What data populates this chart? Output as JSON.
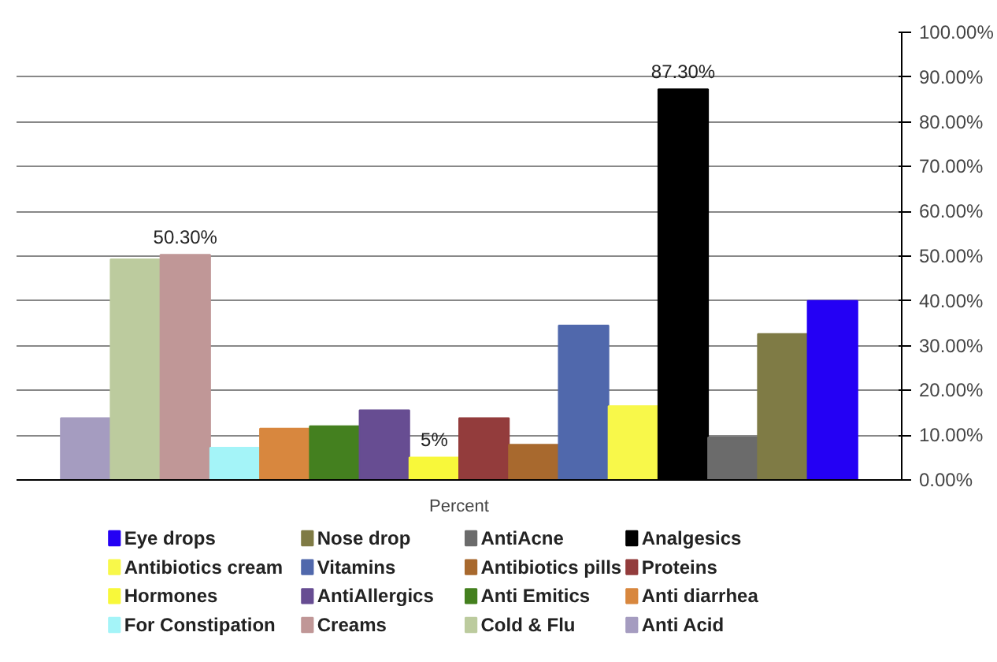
{
  "chart_data": {
    "type": "bar",
    "categories": [
      "Percent"
    ],
    "series": [
      {
        "name": "Anti Acid",
        "color": "#a59cc0",
        "values": [
          13.8
        ]
      },
      {
        "name": "Cold & Flu",
        "color": "#bccb9e",
        "values": [
          49.3
        ]
      },
      {
        "name": "Creams",
        "color": "#c09797",
        "values": [
          50.3
        ],
        "value_labels": [
          "50.30%"
        ]
      },
      {
        "name": "For Constipation",
        "color": "#a4f4f8",
        "values": [
          7.2
        ]
      },
      {
        "name": "Anti diarrhea",
        "color": "#d8873e",
        "values": [
          11.5
        ]
      },
      {
        "name": "Anti Emitics",
        "color": "#44801f",
        "values": [
          12
        ]
      },
      {
        "name": "AntiAllergics",
        "color": "#674d92",
        "values": [
          15.6
        ]
      },
      {
        "name": "Hormones",
        "color": "#f8f83a",
        "values": [
          5
        ],
        "value_labels": [
          "5%"
        ]
      },
      {
        "name": "Proteins",
        "color": "#933c3c",
        "values": [
          13.8
        ]
      },
      {
        "name": "Antibiotics pills",
        "color": "#a8692e",
        "values": [
          7.9
        ]
      },
      {
        "name": "Vitamins",
        "color": "#5068ac",
        "values": [
          34.5
        ]
      },
      {
        "name": "Antibiotics cream",
        "color": "#f8f84a",
        "values": [
          16.5
        ]
      },
      {
        "name": "Analgesics",
        "color": "#000000",
        "values": [
          87.3
        ],
        "value_labels": [
          "87.30%"
        ]
      },
      {
        "name": "AntiAcne",
        "color": "#6b6b6b",
        "values": [
          9.5
        ]
      },
      {
        "name": "Nose drop",
        "color": "#7f7b45",
        "values": [
          32.6
        ]
      },
      {
        "name": "Eye drops",
        "color": "#2400f4",
        "values": [
          40
        ]
      }
    ],
    "ylim": [
      0,
      100
    ],
    "yticks": [
      {
        "value": 0,
        "label": "0.00%"
      },
      {
        "value": 10,
        "label": "10.00%"
      },
      {
        "value": 20,
        "label": "20.00%"
      },
      {
        "value": 30,
        "label": "30.00%"
      },
      {
        "value": 40,
        "label": "40.00%"
      },
      {
        "value": 50,
        "label": "50.00%"
      },
      {
        "value": 60,
        "label": "60.00%"
      },
      {
        "value": 70,
        "label": "70.00%"
      },
      {
        "value": 80,
        "label": "80.00%"
      },
      {
        "value": 90,
        "label": "90.00%"
      },
      {
        "value": 100,
        "label": "100.00%"
      }
    ],
    "grid": "y",
    "legend": "bottom"
  }
}
